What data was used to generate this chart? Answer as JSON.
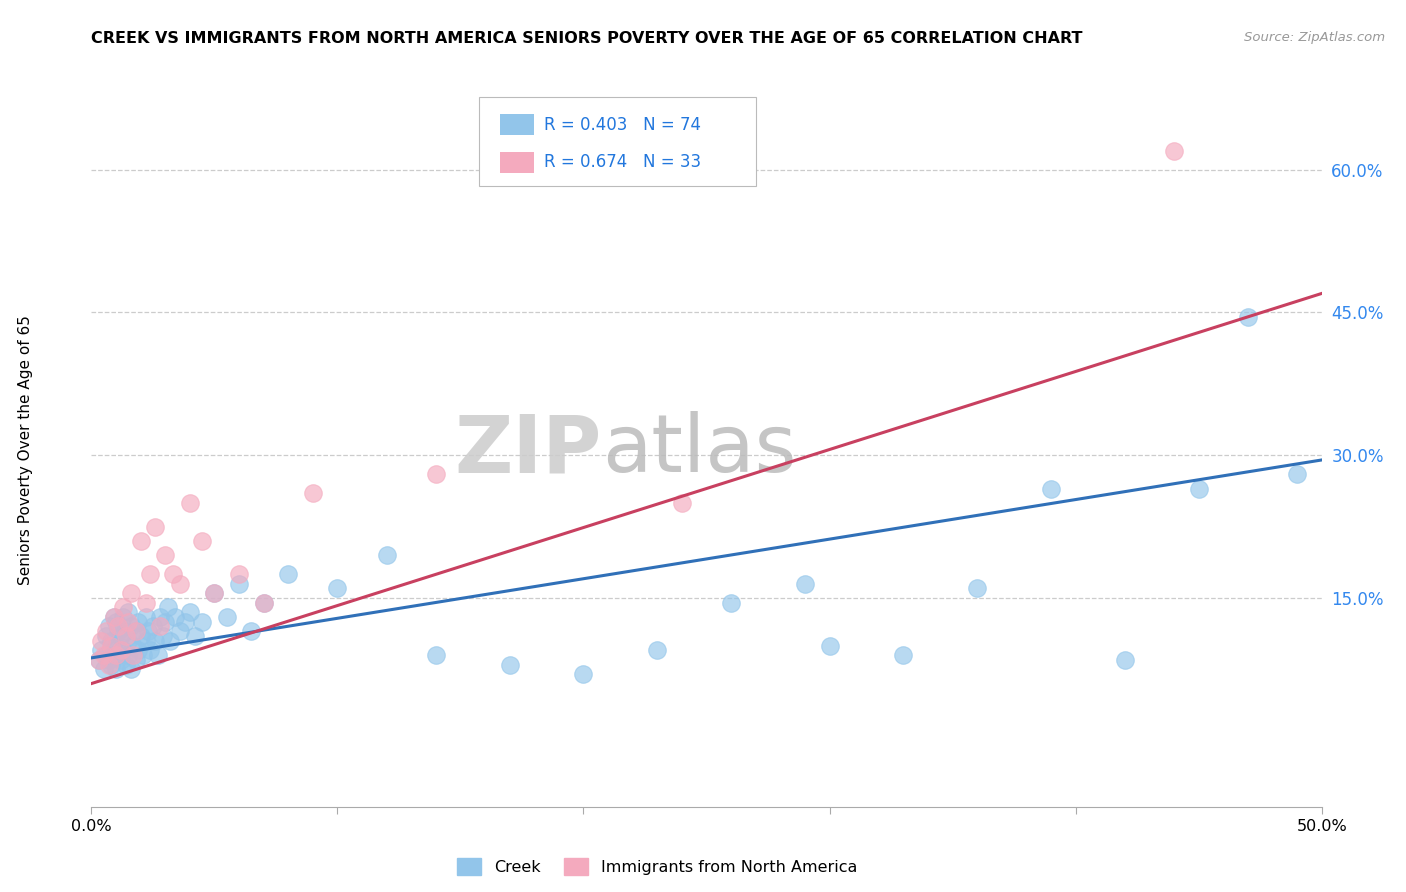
{
  "title": "CREEK VS IMMIGRANTS FROM NORTH AMERICA SENIORS POVERTY OVER THE AGE OF 65 CORRELATION CHART",
  "source": "Source: ZipAtlas.com",
  "ylabel": "Seniors Poverty Over the Age of 65",
  "xlim": [
    0.0,
    0.5
  ],
  "ylim": [
    -0.07,
    0.68
  ],
  "xtick_positions": [
    0.0,
    0.1,
    0.2,
    0.3,
    0.4,
    0.5
  ],
  "xticklabels": [
    "0.0%",
    "",
    "",
    "",
    "",
    "50.0%"
  ],
  "ytick_positions": [
    0.15,
    0.3,
    0.45,
    0.6
  ],
  "ytick_labels": [
    "15.0%",
    "30.0%",
    "45.0%",
    "60.0%"
  ],
  "watermark_zip": "ZIP",
  "watermark_atlas": "atlas",
  "creek_color": "#92C5EA",
  "immigrant_color": "#F4AABE",
  "creek_line_color": "#3070B8",
  "immigrant_line_color": "#C84060",
  "creek_R": 0.403,
  "creek_N": 74,
  "immigrant_R": 0.674,
  "immigrant_N": 33,
  "creek_x": [
    0.003,
    0.004,
    0.005,
    0.006,
    0.006,
    0.007,
    0.007,
    0.008,
    0.008,
    0.009,
    0.009,
    0.01,
    0.01,
    0.01,
    0.011,
    0.011,
    0.012,
    0.012,
    0.013,
    0.013,
    0.014,
    0.014,
    0.015,
    0.015,
    0.015,
    0.016,
    0.016,
    0.017,
    0.018,
    0.018,
    0.019,
    0.019,
    0.02,
    0.021,
    0.022,
    0.022,
    0.023,
    0.024,
    0.025,
    0.026,
    0.027,
    0.028,
    0.029,
    0.03,
    0.031,
    0.032,
    0.034,
    0.036,
    0.038,
    0.04,
    0.042,
    0.045,
    0.05,
    0.055,
    0.06,
    0.065,
    0.07,
    0.08,
    0.1,
    0.12,
    0.14,
    0.17,
    0.2,
    0.23,
    0.26,
    0.29,
    0.3,
    0.33,
    0.36,
    0.39,
    0.42,
    0.45,
    0.47,
    0.49
  ],
  "creek_y": [
    0.085,
    0.095,
    0.075,
    0.09,
    0.11,
    0.085,
    0.12,
    0.08,
    0.105,
    0.095,
    0.13,
    0.075,
    0.1,
    0.125,
    0.09,
    0.115,
    0.085,
    0.11,
    0.095,
    0.13,
    0.08,
    0.115,
    0.09,
    0.105,
    0.135,
    0.075,
    0.12,
    0.1,
    0.085,
    0.115,
    0.095,
    0.125,
    0.11,
    0.09,
    0.105,
    0.13,
    0.115,
    0.095,
    0.12,
    0.105,
    0.09,
    0.13,
    0.11,
    0.125,
    0.14,
    0.105,
    0.13,
    0.115,
    0.125,
    0.135,
    0.11,
    0.125,
    0.155,
    0.13,
    0.165,
    0.115,
    0.145,
    0.175,
    0.16,
    0.195,
    0.09,
    0.08,
    0.07,
    0.095,
    0.145,
    0.165,
    0.1,
    0.09,
    0.16,
    0.265,
    0.085,
    0.265,
    0.445,
    0.28
  ],
  "immigrant_x": [
    0.003,
    0.004,
    0.005,
    0.006,
    0.007,
    0.008,
    0.009,
    0.01,
    0.011,
    0.012,
    0.013,
    0.014,
    0.015,
    0.016,
    0.017,
    0.018,
    0.02,
    0.022,
    0.024,
    0.026,
    0.028,
    0.03,
    0.033,
    0.036,
    0.04,
    0.045,
    0.05,
    0.06,
    0.07,
    0.09,
    0.14,
    0.24,
    0.44
  ],
  "immigrant_y": [
    0.085,
    0.105,
    0.09,
    0.115,
    0.08,
    0.1,
    0.13,
    0.09,
    0.12,
    0.095,
    0.14,
    0.11,
    0.125,
    0.155,
    0.09,
    0.115,
    0.21,
    0.145,
    0.175,
    0.225,
    0.12,
    0.195,
    0.175,
    0.165,
    0.25,
    0.21,
    0.155,
    0.175,
    0.145,
    0.26,
    0.28,
    0.25,
    0.62
  ]
}
